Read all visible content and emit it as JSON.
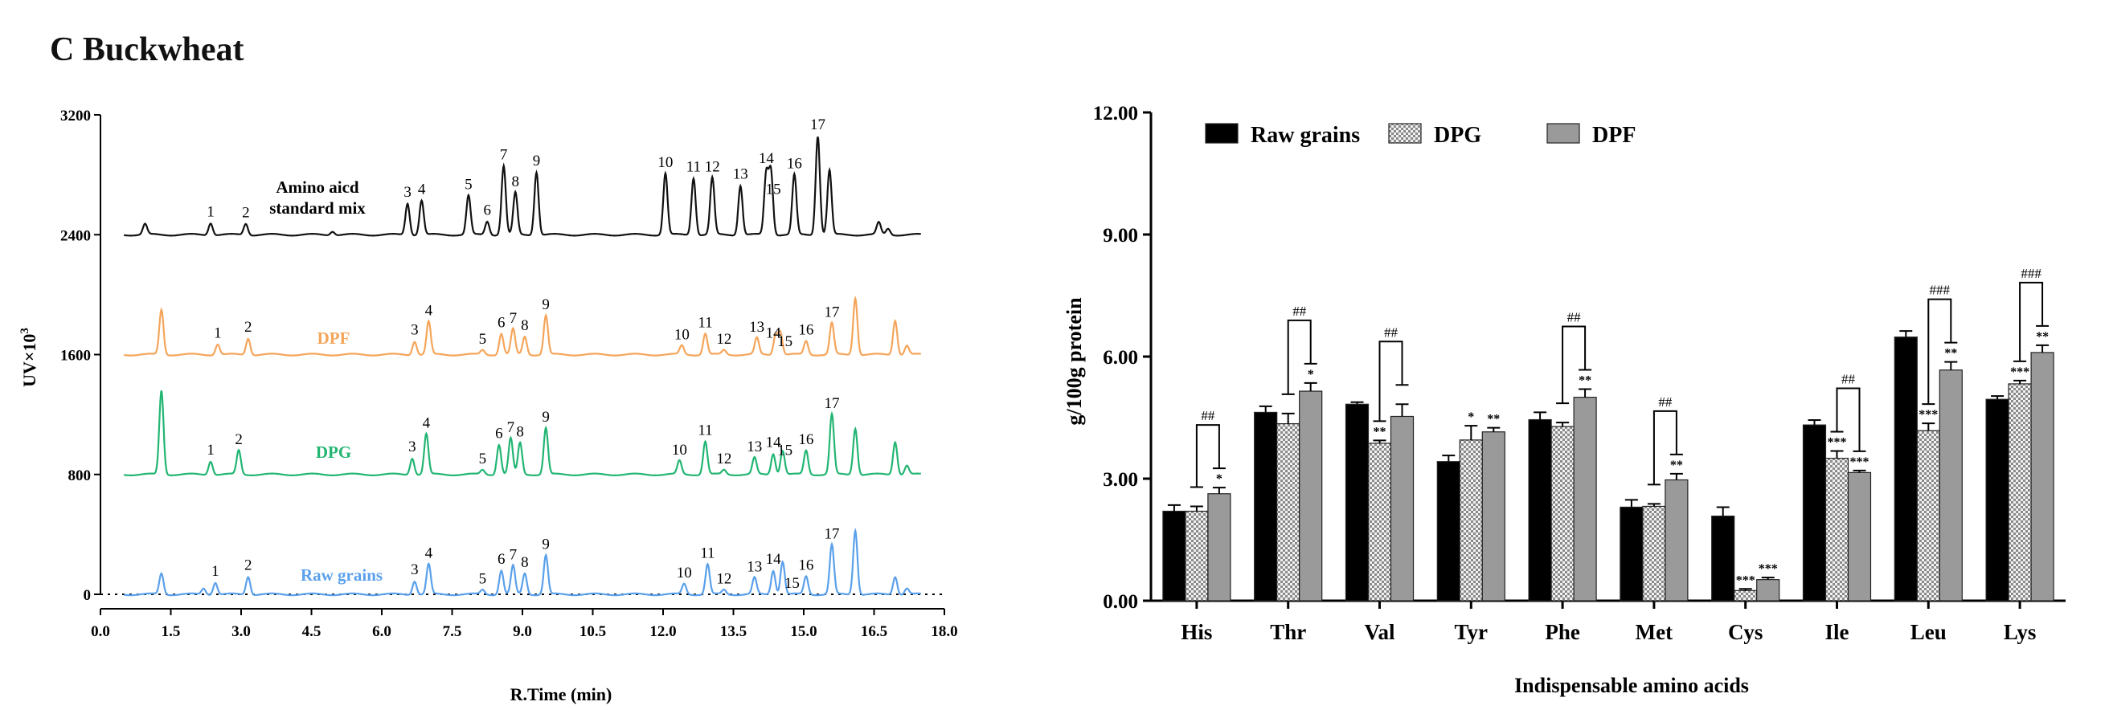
{
  "panel_title": "C   Buckwheat",
  "colors": {
    "standard": "#111111",
    "dpf": "#f5a55a",
    "dpg": "#22b573",
    "raw": "#5aa0ea",
    "bar_raw": "#000000",
    "bar_dpg": "#e0e0e0",
    "bar_dpf": "#9a9a9a"
  },
  "chart_data": [
    {
      "type": "line",
      "title": "",
      "xlabel": "R.Time (min)",
      "ylabel": "UV×10",
      "ylabel_superscript": "3",
      "xlim": [
        0,
        18
      ],
      "ylim": [
        0,
        3200
      ],
      "xticks": [
        "0.0",
        "1.5",
        "3.0",
        "4.5",
        "6.0",
        "7.5",
        "9.0",
        "10.5",
        "12.0",
        "13.5",
        "15.0",
        "16.5",
        "18.0"
      ],
      "yticks": [
        "0",
        "800",
        "1600",
        "2400",
        "3200"
      ],
      "peak_labels": [
        "1",
        "2",
        "3",
        "4",
        "5",
        "6",
        "7",
        "8",
        "9",
        "10",
        "11",
        "12",
        "13",
        "14",
        "15",
        "16",
        "17"
      ],
      "series": [
        {
          "name": "Amino aicd standard mix",
          "name_lines": [
            "Amino aicd",
            "standard mix"
          ],
          "color_key": "standard",
          "baseline": 2400,
          "peaks": [
            [
              0.95,
              70
            ],
            [
              2.35,
              80
            ],
            [
              3.1,
              75
            ],
            [
              4.95,
              25
            ],
            [
              6.55,
              210
            ],
            [
              6.85,
              230
            ],
            [
              7.85,
              260
            ],
            [
              8.25,
              90
            ],
            [
              8.6,
              460
            ],
            [
              8.85,
              280
            ],
            [
              9.3,
              420
            ],
            [
              12.05,
              410
            ],
            [
              12.65,
              380
            ],
            [
              13.05,
              380
            ],
            [
              13.65,
              330
            ],
            [
              14.2,
              400
            ],
            [
              14.3,
              420
            ],
            [
              14.8,
              400
            ],
            [
              15.3,
              660
            ],
            [
              15.55,
              430
            ],
            [
              16.6,
              80
            ],
            [
              16.8,
              40
            ]
          ],
          "labels": [
            [
              1,
              2.35
            ],
            [
              2,
              3.1
            ],
            [
              3,
              6.55
            ],
            [
              4,
              6.85
            ],
            [
              5,
              7.85
            ],
            [
              6,
              8.25
            ],
            [
              7,
              8.6
            ],
            [
              8,
              8.85
            ],
            [
              9,
              9.3
            ],
            [
              10,
              12.05
            ],
            [
              11,
              12.65
            ],
            [
              12,
              13.05
            ],
            [
              13,
              13.65
            ],
            [
              14,
              14.2
            ],
            [
              15,
              14.35
            ],
            [
              16,
              14.8
            ],
            [
              17,
              15.3
            ]
          ]
        },
        {
          "name": "DPF",
          "color_key": "dpf",
          "baseline": 1600,
          "peaks": [
            [
              1.3,
              300
            ],
            [
              2.5,
              70
            ],
            [
              3.15,
              110
            ],
            [
              6.7,
              90
            ],
            [
              7.0,
              220
            ],
            [
              8.15,
              30
            ],
            [
              8.55,
              140
            ],
            [
              8.8,
              170
            ],
            [
              9.05,
              120
            ],
            [
              9.5,
              260
            ],
            [
              12.4,
              60
            ],
            [
              12.9,
              140
            ],
            [
              13.3,
              30
            ],
            [
              14.0,
              110
            ],
            [
              14.4,
              130
            ],
            [
              14.5,
              150
            ],
            [
              15.05,
              90
            ],
            [
              15.6,
              210
            ],
            [
              16.1,
              380
            ],
            [
              16.95,
              230
            ],
            [
              17.2,
              60
            ]
          ],
          "labels": [
            [
              1,
              2.5
            ],
            [
              2,
              3.15
            ],
            [
              3,
              6.7
            ],
            [
              4,
              7.0
            ],
            [
              5,
              8.15
            ],
            [
              6,
              8.55
            ],
            [
              7,
              8.8
            ],
            [
              8,
              9.05
            ],
            [
              9,
              9.5
            ],
            [
              10,
              12.4
            ],
            [
              11,
              12.9
            ],
            [
              12,
              13.3
            ],
            [
              13,
              14.0
            ],
            [
              14,
              14.35
            ],
            [
              15,
              14.6
            ],
            [
              16,
              15.05
            ],
            [
              17,
              15.6
            ]
          ]
        },
        {
          "name": "DPG",
          "color_key": "dpg",
          "baseline": 800,
          "peaks": [
            [
              1.3,
              560
            ],
            [
              2.35,
              90
            ],
            [
              2.95,
              160
            ],
            [
              6.65,
              110
            ],
            [
              6.95,
              270
            ],
            [
              8.15,
              30
            ],
            [
              8.5,
              200
            ],
            [
              8.75,
              240
            ],
            [
              8.95,
              210
            ],
            [
              9.5,
              310
            ],
            [
              12.35,
              90
            ],
            [
              12.9,
              220
            ],
            [
              13.3,
              30
            ],
            [
              13.95,
              110
            ],
            [
              14.35,
              140
            ],
            [
              14.55,
              160
            ],
            [
              15.05,
              160
            ],
            [
              15.6,
              400
            ],
            [
              16.1,
              310
            ],
            [
              16.95,
              220
            ],
            [
              17.2,
              60
            ]
          ],
          "labels": [
            [
              1,
              2.35
            ],
            [
              2,
              2.95
            ],
            [
              3,
              6.65
            ],
            [
              4,
              6.95
            ],
            [
              5,
              8.15
            ],
            [
              6,
              8.5
            ],
            [
              7,
              8.75
            ],
            [
              8,
              8.95
            ],
            [
              9,
              9.5
            ],
            [
              10,
              12.35
            ],
            [
              11,
              12.9
            ],
            [
              12,
              13.3
            ],
            [
              13,
              13.95
            ],
            [
              14,
              14.35
            ],
            [
              15,
              14.6
            ],
            [
              16,
              15.05
            ],
            [
              17,
              15.6
            ]
          ]
        },
        {
          "name": "Raw grains",
          "color_key": "raw",
          "baseline": 0,
          "peaks": [
            [
              1.3,
              140
            ],
            [
              2.2,
              40
            ],
            [
              2.45,
              80
            ],
            [
              3.15,
              120
            ],
            [
              6.7,
              90
            ],
            [
              7.0,
              200
            ],
            [
              8.15,
              30
            ],
            [
              8.55,
              160
            ],
            [
              8.8,
              190
            ],
            [
              9.05,
              140
            ],
            [
              9.5,
              260
            ],
            [
              12.45,
              70
            ],
            [
              12.95,
              200
            ],
            [
              13.3,
              30
            ],
            [
              13.95,
              110
            ],
            [
              14.35,
              160
            ],
            [
              14.55,
              220
            ],
            [
              15.05,
              120
            ],
            [
              15.6,
              330
            ],
            [
              16.1,
              430
            ],
            [
              16.95,
              120
            ],
            [
              17.2,
              40
            ]
          ],
          "labels": [
            [
              1,
              2.45
            ],
            [
              2,
              3.15
            ],
            [
              3,
              6.7
            ],
            [
              4,
              7.0
            ],
            [
              5,
              8.15
            ],
            [
              6,
              8.55
            ],
            [
              7,
              8.8
            ],
            [
              8,
              9.05
            ],
            [
              9,
              9.5
            ],
            [
              10,
              12.45
            ],
            [
              11,
              12.95
            ],
            [
              12,
              13.3
            ],
            [
              13,
              13.95
            ],
            [
              14,
              14.35
            ],
            [
              15,
              14.75
            ],
            [
              16,
              15.05
            ],
            [
              17,
              15.6
            ]
          ]
        }
      ]
    },
    {
      "type": "bar",
      "title": "",
      "xlabel": "Indispensable amino acids",
      "ylabel": "g/100g protein",
      "ylim": [
        0,
        12
      ],
      "yticks": [
        "0.00",
        "3.00",
        "6.00",
        "9.00",
        "12.00"
      ],
      "legend_position": "top-left",
      "categories": [
        "His",
        "Thr",
        "Val",
        "Tyr",
        "Phe",
        "Met",
        "Cys",
        "Ile",
        "Leu",
        "Lys"
      ],
      "series": [
        {
          "name": "Raw grains",
          "color_key": "bar_raw",
          "pattern": "solid",
          "values": [
            2.2,
            4.63,
            4.83,
            3.42,
            4.45,
            2.3,
            2.08,
            4.32,
            6.48,
            4.95
          ],
          "errors": [
            0.15,
            0.15,
            0.05,
            0.15,
            0.18,
            0.18,
            0.22,
            0.12,
            0.15,
            0.08
          ],
          "sig": [
            "",
            "",
            "",
            "",
            "",
            "",
            "",
            "",
            "",
            ""
          ]
        },
        {
          "name": "DPG",
          "color_key": "bar_dpg",
          "pattern": "checker",
          "values": [
            2.2,
            4.35,
            3.87,
            3.95,
            4.28,
            2.32,
            0.25,
            3.5,
            4.18,
            5.33
          ],
          "errors": [
            0.12,
            0.25,
            0.07,
            0.35,
            0.1,
            0.06,
            0.04,
            0.18,
            0.18,
            0.08
          ],
          "sig": [
            "",
            "",
            "**",
            "*",
            "",
            "",
            "***",
            "***",
            "***",
            "***"
          ]
        },
        {
          "name": "DPF",
          "color_key": "bar_dpf",
          "pattern": "solid",
          "values": [
            2.63,
            5.15,
            4.53,
            4.15,
            5.0,
            2.97,
            0.52,
            3.15,
            5.67,
            6.1
          ],
          "errors": [
            0.15,
            0.2,
            0.3,
            0.1,
            0.2,
            0.15,
            0.05,
            0.05,
            0.2,
            0.18
          ],
          "sig": [
            "*",
            "*",
            "",
            "**",
            "**",
            "**",
            "***",
            "***",
            "**",
            "**"
          ]
        }
      ],
      "brackets": [
        {
          "category": "His",
          "label": "##"
        },
        {
          "category": "Thr",
          "label": "##"
        },
        {
          "category": "Val",
          "label": "##"
        },
        {
          "category": "Phe",
          "label": "##"
        },
        {
          "category": "Met",
          "label": "##"
        },
        {
          "category": "Ile",
          "label": "##"
        },
        {
          "category": "Leu",
          "label": "###"
        },
        {
          "category": "Lys",
          "label": "###"
        }
      ]
    }
  ]
}
